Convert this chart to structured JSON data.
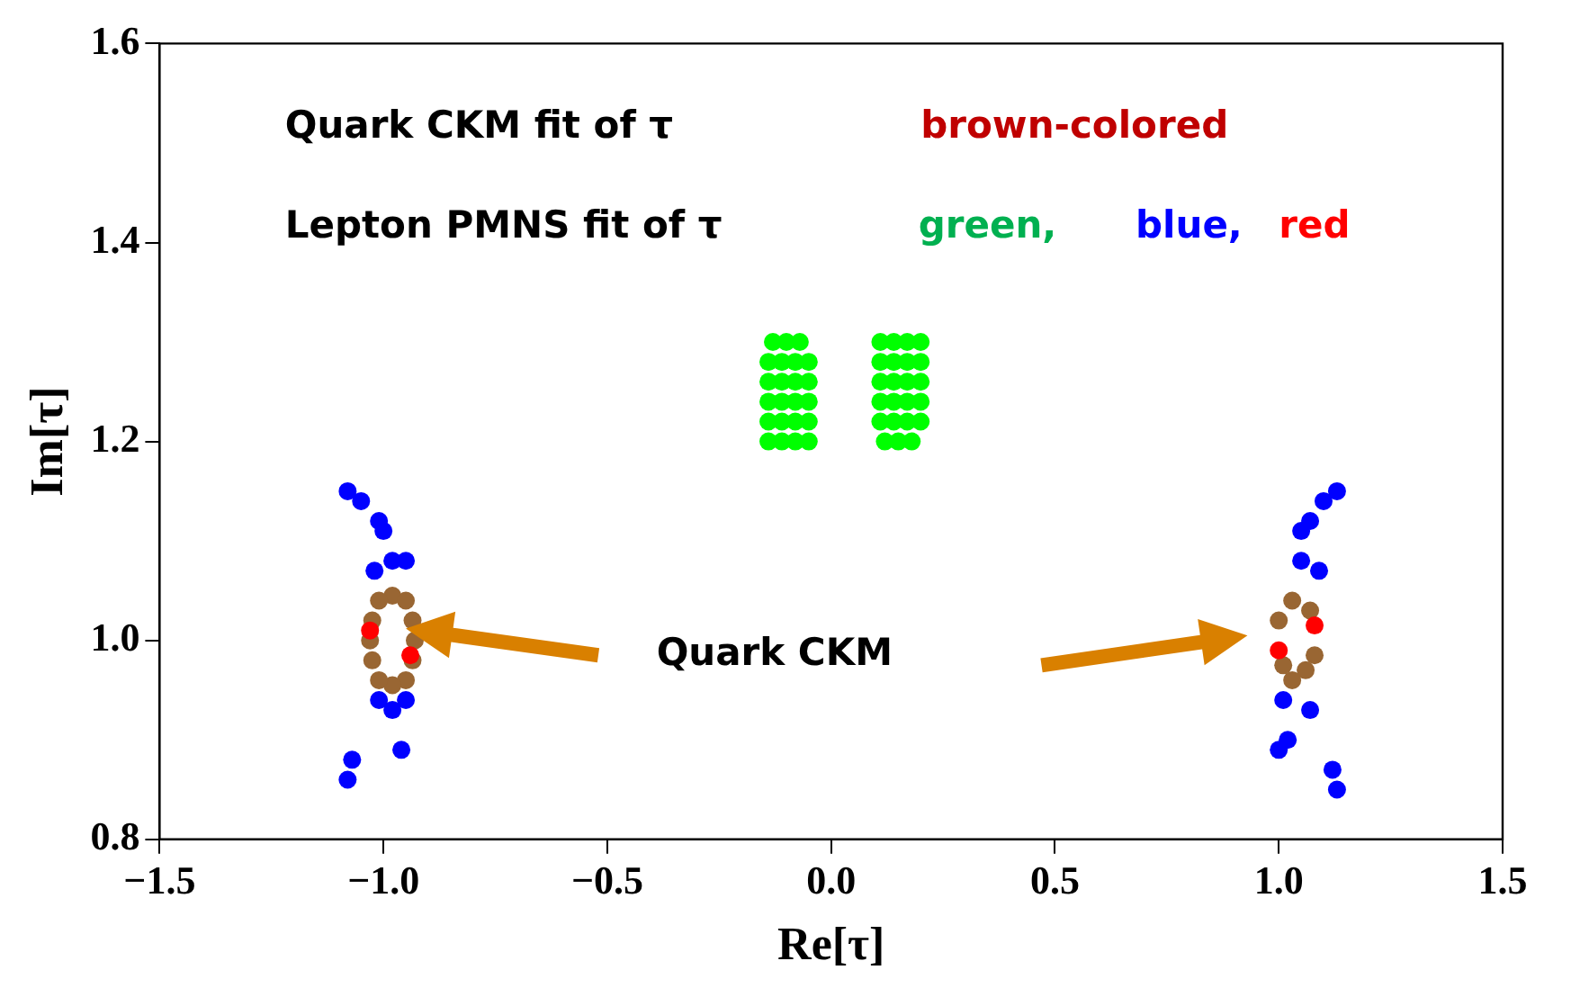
{
  "chart_data": {
    "type": "scatter",
    "xlabel": "Re[τ]",
    "ylabel": "Im[τ]",
    "xlim": [
      -1.5,
      1.5
    ],
    "ylim": [
      0.8,
      1.6
    ],
    "xticks": [
      {
        "value": -1.5,
        "label": "−1.5"
      },
      {
        "value": -1,
        "label": "−1.0"
      },
      {
        "value": -0.5,
        "label": "−0.5"
      },
      {
        "value": 0,
        "label": "0.0"
      },
      {
        "value": 0.5,
        "label": "0.5"
      },
      {
        "value": 1,
        "label": "1.0"
      },
      {
        "value": 1.5,
        "label": "1.5"
      }
    ],
    "yticks": [
      0.8,
      {
        "value": 1,
        "label": "1.0"
      },
      1.2,
      1.4,
      1.6
    ],
    "grid": false,
    "legend": false,
    "marker": "circle",
    "annotations": [
      "Quark CKM fit of τ",
      "brown-colored",
      "Lepton PMNS fit of τ",
      "green,",
      "blue,",
      "red",
      "Quark CKM"
    ],
    "series": [
      {
        "color": "#00ff00",
        "x": [
          -0.14,
          -0.11,
          -0.08,
          -0.05,
          -0.14,
          -0.11,
          -0.08,
          -0.05,
          -0.14,
          -0.11,
          -0.08,
          -0.05,
          -0.14,
          -0.11,
          -0.08,
          -0.05,
          -0.14,
          -0.11,
          -0.08,
          -0.05,
          -0.13,
          -0.1,
          -0.07,
          0.11,
          0.14,
          0.17,
          0.2,
          0.11,
          0.14,
          0.17,
          0.2,
          0.11,
          0.14,
          0.17,
          0.2,
          0.11,
          0.14,
          0.17,
          0.2,
          0.11,
          0.14,
          0.17,
          0.2,
          0.12,
          0.15,
          0.18
        ],
        "values": [
          1.2,
          1.2,
          1.2,
          1.2,
          1.22,
          1.22,
          1.22,
          1.22,
          1.24,
          1.24,
          1.24,
          1.24,
          1.26,
          1.26,
          1.26,
          1.26,
          1.28,
          1.28,
          1.28,
          1.28,
          1.3,
          1.3,
          1.3,
          1.3,
          1.3,
          1.3,
          1.3,
          1.28,
          1.28,
          1.28,
          1.28,
          1.26,
          1.26,
          1.26,
          1.26,
          1.24,
          1.24,
          1.24,
          1.24,
          1.22,
          1.22,
          1.22,
          1.22,
          1.2,
          1.2,
          1.2
        ]
      },
      {
        "color": "#0000ff",
        "x": [
          -1.08,
          -1.05,
          -1.01,
          -1.0,
          -0.98,
          -1.02,
          -0.95,
          -1.01,
          -0.95,
          -0.98,
          -0.96,
          -1.07,
          -1.08,
          1.13,
          1.1,
          1.07,
          1.05,
          1.05,
          1.09,
          1.01,
          1.07,
          1.02,
          1.0,
          1.12,
          1.13
        ],
        "values": [
          1.15,
          1.14,
          1.12,
          1.11,
          1.08,
          1.07,
          1.08,
          0.94,
          0.94,
          0.93,
          0.89,
          0.88,
          0.86,
          1.15,
          1.14,
          1.12,
          1.11,
          1.08,
          1.07,
          0.94,
          0.93,
          0.9,
          0.89,
          0.87,
          0.85
        ]
      },
      {
        "color": "#996633",
        "x": [
          -0.98,
          -0.95,
          -0.935,
          -0.93,
          -0.935,
          -0.95,
          -0.98,
          -1.01,
          -1.025,
          -1.03,
          -1.025,
          -1.01,
          1.03,
          1.07,
          1.0,
          1.08,
          1.06,
          1.03,
          1.01
        ],
        "values": [
          1.045,
          1.04,
          1.02,
          1.0,
          0.98,
          0.96,
          0.955,
          0.96,
          0.98,
          1.0,
          1.02,
          1.04,
          1.04,
          1.03,
          1.02,
          0.985,
          0.97,
          0.96,
          0.975
        ]
      },
      {
        "color": "#ff0000",
        "x": [
          -1.03,
          -0.94,
          1.08,
          1.0
        ],
        "values": [
          1.01,
          0.985,
          1.015,
          0.99
        ]
      }
    ]
  }
}
